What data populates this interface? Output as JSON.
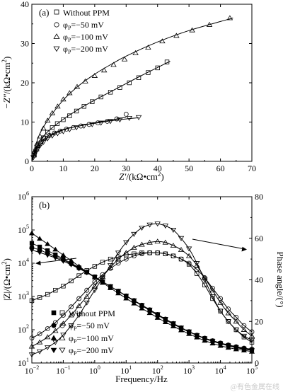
{
  "chart_data": [
    {
      "type": "scatter",
      "panel_label": "(a)",
      "xlabel_main": "Z′",
      "xlabel_unit": "/(kΩ•cm",
      "xlabel_sup": "2",
      "xlabel_close": ")",
      "ylabel_main": "−Z″",
      "ylabel_unit": "/(kΩ•cm",
      "ylabel_sup": "2",
      "ylabel_close": ")",
      "xlim": [
        0,
        70
      ],
      "ylim": [
        0,
        40
      ],
      "xticks": [
        "0",
        "10",
        "20",
        "30",
        "40",
        "50",
        "60",
        "70"
      ],
      "yticks": [
        "0",
        "10",
        "20",
        "30",
        "40"
      ],
      "legend_position": "top-left",
      "series": [
        {
          "name": "Without PPM",
          "marker": "square",
          "x": [
            0.8,
            1.6,
            2.6,
            3.7,
            5.0,
            6.5,
            8.1,
            10,
            12,
            14.2,
            16.6,
            19.2,
            22,
            25,
            28,
            31,
            34,
            37,
            40,
            43
          ],
          "y": [
            1.6,
            3.1,
            4.6,
            6.0,
            7.4,
            8.6,
            9.6,
            10.6,
            11.6,
            12.8,
            14.0,
            15.2,
            16.4,
            17.6,
            18.8,
            20.0,
            21.3,
            22.6,
            23.8,
            25.3
          ],
          "fit_x": [
            0,
            2,
            5,
            10,
            15,
            20,
            25,
            30,
            35,
            40,
            44
          ],
          "fit_y": [
            0,
            4.5,
            7.5,
            10.7,
            13.3,
            15.6,
            17.7,
            19.8,
            21.9,
            23.9,
            25.5
          ]
        },
        {
          "name": "φ_P=−50 mV",
          "marker": "circle",
          "x": [
            0.6,
            1.2,
            2.0,
            3.0,
            4.2,
            5.6,
            7.2,
            9.0,
            11,
            13.2,
            15.6,
            18.2,
            21,
            24,
            27,
            30
          ],
          "y": [
            1.4,
            2.8,
            4.0,
            5.0,
            5.9,
            6.6,
            7.2,
            7.7,
            8.2,
            8.6,
            9.0,
            9.4,
            9.8,
            10.2,
            10.8,
            12.0
          ],
          "fit_x": [
            0,
            2,
            5,
            10,
            15,
            20,
            25,
            30
          ],
          "fit_y": [
            0,
            4.0,
            6.4,
            8.1,
            9.0,
            9.8,
            10.5,
            11.2
          ]
        },
        {
          "name": "φ_P=−100 mV",
          "marker": "triangle-up",
          "x": [
            0.8,
            1.6,
            2.6,
            3.7,
            5.0,
            6.5,
            8.2,
            10,
            12,
            14.4,
            17,
            20,
            23,
            26,
            29.5,
            33,
            37,
            41.5,
            46,
            51,
            56.5,
            63
          ],
          "y": [
            2.4,
            4.4,
            6.4,
            8.4,
            10.4,
            12.3,
            14.0,
            15.8,
            17.4,
            19.0,
            20.4,
            21.8,
            23.2,
            24.6,
            26.0,
            27.6,
            29.0,
            30.6,
            32.0,
            33.4,
            34.8,
            36.5
          ],
          "fit_x": [
            0,
            2,
            5,
            10,
            15,
            20,
            25,
            30,
            40,
            50,
            60,
            64
          ],
          "fit_y": [
            0,
            6.0,
            10.4,
            15.6,
            19.3,
            22.2,
            24.6,
            26.8,
            30.4,
            33.3,
            35.6,
            36.5
          ]
        },
        {
          "name": "φ_P=−200 mV",
          "marker": "triangle-down",
          "x": [
            0.5,
            1.0,
            1.7,
            2.6,
            3.7,
            5.0,
            6.5,
            8.2,
            10,
            12,
            14.2,
            16.6,
            19.2,
            22,
            25,
            28,
            31,
            34
          ],
          "y": [
            1.0,
            2.0,
            3.0,
            4.0,
            4.9,
            5.8,
            6.5,
            7.1,
            7.6,
            8.1,
            8.6,
            9.0,
            9.4,
            9.8,
            10.2,
            10.6,
            11.0,
            11.2
          ],
          "fit_x": [
            0,
            2,
            5,
            10,
            15,
            20,
            25,
            30,
            34
          ],
          "fit_y": [
            0,
            3.5,
            6.0,
            8.0,
            9.0,
            9.7,
            10.3,
            10.8,
            11.1
          ]
        }
      ]
    },
    {
      "type": "scatter",
      "panel_label": "(b)",
      "xlabel": "Frequency/Hz",
      "ylabel_left_main": "|Z|/(Ω•cm",
      "ylabel_left_sup": "2",
      "ylabel_left_close": ")",
      "ylabel_right": "Phase angle/(°)",
      "xscale": "log",
      "x_tick_exponents": [
        -2,
        -1,
        0,
        1,
        2,
        3,
        4,
        5
      ],
      "yscale_left": "log",
      "ylim_left": [
        10,
        1000000
      ],
      "y_tick_exponents": [
        1,
        2,
        3,
        4,
        5,
        6
      ],
      "ylim_right": [
        0,
        80
      ],
      "yticks_right": [
        "0",
        "20",
        "40",
        "60",
        "80"
      ],
      "legend_position": "bottom-left",
      "series": [
        {
          "name": "Without PPM",
          "quantity": "modulus",
          "marker": "square-filled",
          "x": [
            0.01,
            0.0178,
            0.0316,
            0.0562,
            0.1,
            0.178,
            0.316,
            0.562,
            1,
            1.78,
            3.16,
            5.62,
            10,
            17.8,
            31.6,
            56.2,
            100,
            178,
            316,
            562,
            1000,
            1780,
            3160,
            5620,
            10000,
            17800,
            31600,
            56200,
            100000
          ],
          "y": [
            40000,
            31000,
            24000,
            18000,
            13500,
            10000,
            7400,
            5400,
            3900,
            2800,
            2000,
            1450,
            1030,
            740,
            530,
            380,
            275,
            200,
            148,
            112,
            86,
            68,
            55,
            46,
            39,
            34,
            30,
            27,
            25
          ]
        },
        {
          "name": "Without PPM",
          "quantity": "phase",
          "marker": "square",
          "x": [
            0.01,
            0.0178,
            0.0316,
            0.0562,
            0.1,
            0.178,
            0.316,
            0.562,
            1,
            1.78,
            3.16,
            5.62,
            10,
            17.8,
            31.6,
            56.2,
            100,
            178,
            316,
            562,
            1000,
            1780,
            3160,
            5620,
            10000,
            17800,
            31600,
            56200,
            100000
          ],
          "y": [
            30,
            31.5,
            33,
            35,
            37,
            39.5,
            42,
            44.5,
            46.5,
            48.5,
            50,
            51,
            52,
            52.5,
            53,
            53,
            53,
            52.5,
            51.5,
            50,
            47.5,
            43,
            37.5,
            31,
            25,
            20,
            16,
            12.5,
            10
          ]
        },
        {
          "name": "φ_P=−50 mV",
          "quantity": "modulus",
          "marker": "circle-filled",
          "x": [
            0.01,
            0.0178,
            0.0316,
            0.0562,
            0.1,
            0.178,
            0.316,
            0.562,
            1,
            1.78,
            3.16,
            5.62,
            10,
            17.8,
            31.6,
            56.2,
            100,
            178,
            316,
            562,
            1000,
            1780,
            3160,
            5620,
            10000,
            17800,
            31600,
            56200,
            100000
          ],
          "y": [
            30000,
            25000,
            20000,
            16000,
            12500,
            9500,
            7100,
            5300,
            3900,
            2800,
            2000,
            1450,
            1050,
            760,
            550,
            400,
            290,
            210,
            155,
            115,
            88,
            69,
            56,
            47,
            40,
            35,
            31,
            28,
            26
          ]
        },
        {
          "name": "φ_P=−50 mV",
          "quantity": "phase",
          "marker": "circle",
          "x": [
            0.01,
            0.0178,
            0.0316,
            0.0562,
            0.1,
            0.178,
            0.316,
            0.562,
            1,
            1.78,
            3.16,
            5.62,
            10,
            17.8,
            31.6,
            56.2,
            100,
            178,
            316,
            562,
            1000,
            1780,
            3160,
            5620,
            10000,
            17800,
            31600,
            56200,
            100000
          ],
          "y": [
            12,
            14,
            16.5,
            19.5,
            23,
            27,
            31,
            35,
            39,
            42.5,
            45.5,
            48,
            50,
            51.5,
            52.5,
            53,
            53,
            52.5,
            51.5,
            50,
            48,
            45,
            41,
            36,
            31,
            26,
            22,
            18,
            15
          ]
        },
        {
          "name": "φ_P=−100 mV",
          "quantity": "modulus",
          "marker": "triangle-up-filled",
          "x": [
            0.01,
            0.0178,
            0.0316,
            0.0562,
            0.1,
            0.178,
            0.316,
            0.562,
            1,
            1.78,
            3.16,
            5.62,
            10,
            17.8,
            31.6,
            56.2,
            100,
            178,
            316,
            562,
            1000,
            1780,
            3160,
            5620,
            10000,
            17800,
            31600,
            56200,
            100000
          ],
          "y": [
            80000,
            55000,
            38000,
            26000,
            17500,
            12000,
            8100,
            5500,
            3800,
            2600,
            1800,
            1250,
            880,
            620,
            440,
            320,
            230,
            170,
            128,
            97,
            75,
            59,
            47,
            39,
            33,
            29,
            26,
            24,
            22
          ]
        },
        {
          "name": "φ_P=−100 mV",
          "quantity": "phase",
          "marker": "triangle-up",
          "x": [
            0.01,
            0.0178,
            0.0316,
            0.0562,
            0.1,
            0.178,
            0.316,
            0.562,
            1,
            1.78,
            3.16,
            5.62,
            10,
            17.8,
            31.6,
            56.2,
            100,
            178,
            316,
            562,
            1000,
            1780,
            3160,
            5620,
            10000,
            17800,
            31600,
            56200,
            100000
          ],
          "y": [
            8,
            10,
            12.5,
            15.5,
            19,
            23,
            27.5,
            32,
            37,
            41.5,
            46,
            50,
            53,
            55.5,
            57,
            58,
            58.5,
            58,
            56.5,
            54.5,
            51.5,
            47,
            41,
            35,
            29,
            24,
            20,
            16,
            13
          ]
        },
        {
          "name": "φ_P=−200 mV",
          "quantity": "modulus",
          "marker": "triangle-down-filled",
          "x": [
            0.01,
            0.0178,
            0.0316,
            0.0562,
            0.1,
            0.178,
            0.316,
            0.562,
            1,
            1.78,
            3.16,
            5.62,
            10,
            17.8,
            31.6,
            56.2,
            100,
            178,
            316,
            562,
            1000,
            1780,
            3160,
            5620,
            10000,
            17800,
            31600,
            56200,
            100000
          ],
          "y": [
            25000,
            21000,
            17500,
            14500,
            11500,
            9000,
            6900,
            5200,
            3800,
            2800,
            2000,
            1450,
            1050,
            760,
            550,
            400,
            290,
            210,
            155,
            115,
            88,
            68,
            54,
            45,
            38,
            33,
            29,
            26,
            24
          ]
        },
        {
          "name": "φ_P=−200 mV",
          "quantity": "phase",
          "marker": "triangle-down",
          "x": [
            0.01,
            0.0178,
            0.0316,
            0.0562,
            0.1,
            0.178,
            0.316,
            0.562,
            1,
            1.78,
            3.16,
            5.62,
            10,
            17.8,
            31.6,
            56.2,
            100,
            178,
            316,
            562,
            1000,
            1780,
            3160,
            5620,
            10000,
            17800,
            31600,
            56200,
            100000
          ],
          "y": [
            4,
            5.5,
            7.5,
            10,
            13.5,
            18,
            23,
            29,
            35,
            41,
            47,
            53,
            58,
            62,
            65,
            66.5,
            67,
            66,
            64,
            60,
            55,
            48,
            40,
            32,
            25,
            20,
            16,
            13,
            11
          ]
        }
      ]
    }
  ],
  "watermark": "@有色金属在线"
}
